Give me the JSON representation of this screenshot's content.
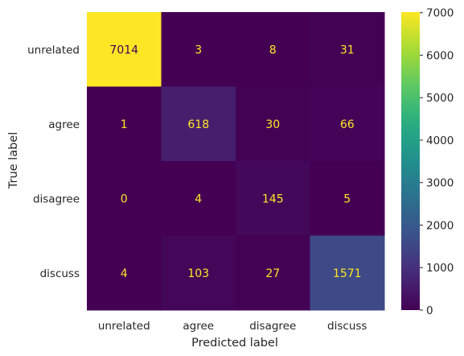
{
  "chart_data": {
    "type": "heatmap",
    "title": "",
    "xlabel": "Predicted label",
    "ylabel": "True label",
    "x_categories": [
      "unrelated",
      "agree",
      "disagree",
      "discuss"
    ],
    "y_categories": [
      "unrelated",
      "agree",
      "disagree",
      "discuss"
    ],
    "values": [
      [
        7014,
        3,
        8,
        31
      ],
      [
        1,
        618,
        30,
        66
      ],
      [
        0,
        4,
        145,
        5
      ],
      [
        4,
        103,
        27,
        1571
      ]
    ],
    "colormap": "viridis",
    "vmin": 0,
    "vmax": 7014,
    "colorbar": {
      "ticks": [
        0,
        1000,
        2000,
        3000,
        4000,
        5000,
        6000,
        7000
      ],
      "tick_labels": [
        "0",
        "1000",
        "2000",
        "3000",
        "4000",
        "5000",
        "6000",
        "7000"
      ]
    },
    "grid": false,
    "text_colors": {
      "on_dark": "#fde725",
      "on_light": "#440154"
    }
  }
}
